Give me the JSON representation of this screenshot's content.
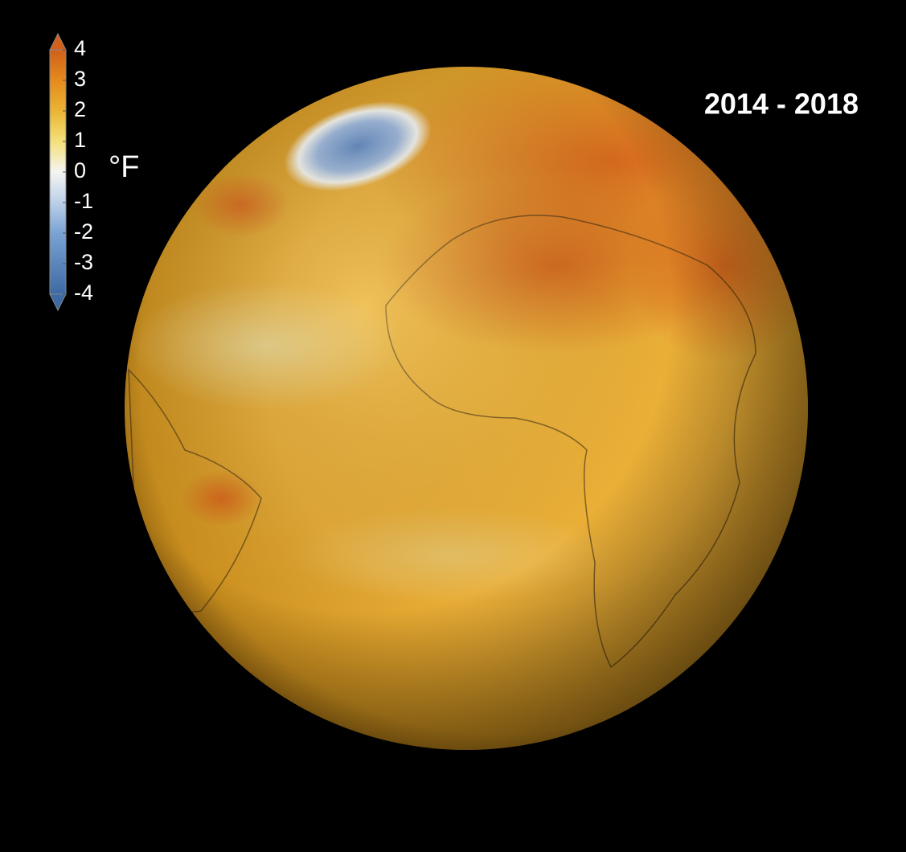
{
  "period": "2014 - 2018",
  "colorbar": {
    "unit": "°F",
    "range": [
      -4,
      4
    ],
    "ticks": [
      4,
      3,
      2,
      1,
      0,
      -1,
      -2,
      -3,
      -4
    ],
    "colors": [
      {
        "value": -4,
        "color": "#3d6aa3"
      },
      {
        "value": -2,
        "color": "#7aa3d4"
      },
      {
        "value": -1,
        "color": "#bcd0e8"
      },
      {
        "value": 0,
        "color": "#f4f4f2"
      },
      {
        "value": 1,
        "color": "#f4e07a"
      },
      {
        "value": 2,
        "color": "#eab533"
      },
      {
        "value": 3,
        "color": "#e58a1c"
      },
      {
        "value": 4,
        "color": "#d0601a"
      }
    ]
  }
}
